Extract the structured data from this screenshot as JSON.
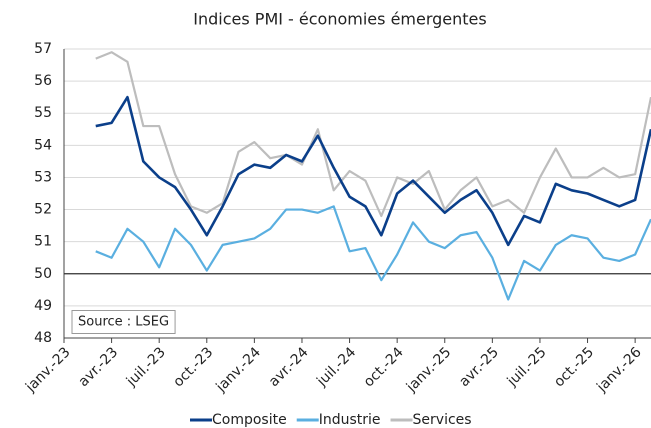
{
  "chart_data": {
    "type": "line",
    "title": "Indices PMI - économies émergentes",
    "categories": [
      "janv.-23",
      null,
      null,
      "avr.-23",
      null,
      null,
      "juil.-23",
      null,
      null,
      "oct.-23",
      null,
      null,
      "janv.-24",
      null,
      null,
      "avr.-24",
      null,
      null,
      "juil.-24",
      null,
      null,
      "oct.-24",
      null,
      null,
      "janv.-25",
      null,
      null,
      "avr.-25",
      null,
      null,
      "juil.-25",
      null,
      null,
      "oct.-25",
      null,
      null,
      "janv.-26",
      null
    ],
    "series": [
      {
        "name": "Composite",
        "color": "#0b3f8a",
        "values": [
          null,
          null,
          54.6,
          54.7,
          55.5,
          53.5,
          53.0,
          52.7,
          52.0,
          51.2,
          52.1,
          53.1,
          53.4,
          53.3,
          53.7,
          53.5,
          54.3,
          53.3,
          52.4,
          52.1,
          51.2,
          52.5,
          52.9,
          52.4,
          51.9,
          52.3,
          52.6,
          51.9,
          50.9,
          51.8,
          51.6,
          52.8,
          52.6,
          52.5,
          52.3,
          52.1,
          52.3,
          54.5
        ]
      },
      {
        "name": "Industrie",
        "color": "#5aafe0",
        "values": [
          null,
          null,
          50.7,
          50.5,
          51.4,
          51.0,
          50.2,
          51.4,
          50.9,
          50.1,
          50.9,
          51.0,
          51.1,
          51.4,
          52.0,
          52.0,
          51.9,
          52.1,
          50.7,
          50.8,
          49.8,
          50.6,
          51.6,
          51.0,
          50.8,
          51.2,
          51.3,
          50.5,
          49.2,
          50.4,
          50.1,
          50.9,
          51.2,
          51.1,
          50.5,
          50.4,
          50.6,
          51.7
        ]
      },
      {
        "name": "Services",
        "color": "#bdbdbd",
        "values": [
          null,
          null,
          56.7,
          56.9,
          56.6,
          54.6,
          54.6,
          53.1,
          52.1,
          51.9,
          52.2,
          53.8,
          54.1,
          53.6,
          53.7,
          53.4,
          54.5,
          52.6,
          53.2,
          52.9,
          51.8,
          53.0,
          52.8,
          53.2,
          52.0,
          52.6,
          53.0,
          52.1,
          52.3,
          51.9,
          53.0,
          53.9,
          53.0,
          53.0,
          53.3,
          53.0,
          53.1,
          55.5
        ]
      }
    ],
    "ylim": [
      48,
      57
    ],
    "yticks": [
      48,
      49,
      50,
      51,
      52,
      53,
      54,
      55,
      56,
      57
    ],
    "grid": true,
    "reference_line": 50,
    "annotation": "Source : LSEG",
    "legend": "bottom"
  }
}
